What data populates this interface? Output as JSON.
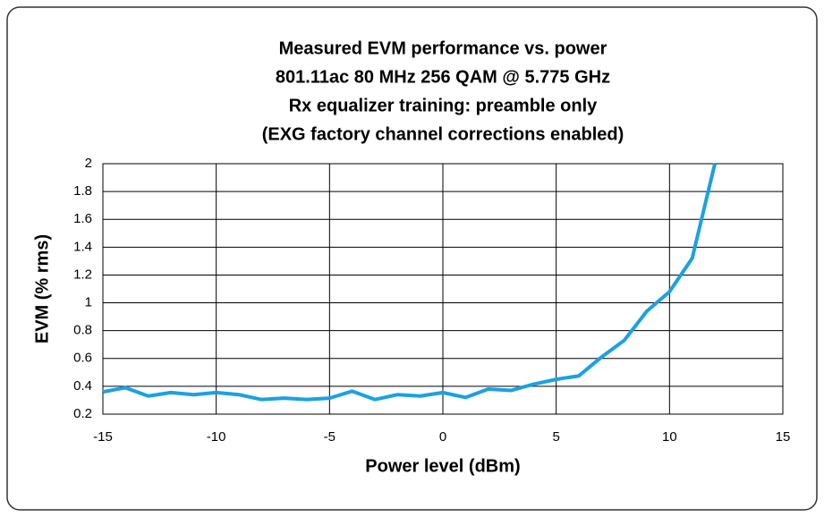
{
  "chart_data": {
    "type": "line",
    "title": [
      "Measured EVM performance vs. power",
      "801.11ac 80 MHz 256 QAM @ 5.775 GHz",
      "Rx equalizer training: preamble only",
      "(EXG factory channel corrections enabled)"
    ],
    "x_label": "Power level (dBm)",
    "y_label": "EVM (% rms)",
    "x": [
      -15,
      -14,
      -13,
      -12,
      -11,
      -10,
      -9,
      -8,
      -7,
      -6,
      -5,
      -4,
      -3,
      -2,
      -1,
      0,
      1,
      2,
      3,
      4,
      5,
      6,
      7,
      8,
      9,
      10,
      11,
      12
    ],
    "series": [
      {
        "color": "#1ba1e2",
        "values": [
          0.36,
          0.39,
          0.33,
          0.355,
          0.34,
          0.355,
          0.34,
          0.305,
          0.315,
          0.305,
          0.315,
          0.365,
          0.305,
          0.34,
          0.33,
          0.355,
          0.32,
          0.38,
          0.37,
          0.415,
          0.45,
          0.475,
          0.61,
          0.73,
          0.94,
          1.08,
          1.32,
          2.0
        ]
      }
    ],
    "xlim": [
      -15,
      15
    ],
    "xticks": [
      -15,
      -10,
      -5,
      0,
      5,
      10,
      15
    ],
    "ylim": [
      0.2,
      2
    ],
    "yticks": [
      0.2,
      0.4,
      0.6,
      0.8,
      1,
      1.2,
      1.4,
      1.6,
      1.8,
      2
    ],
    "grid": true
  }
}
